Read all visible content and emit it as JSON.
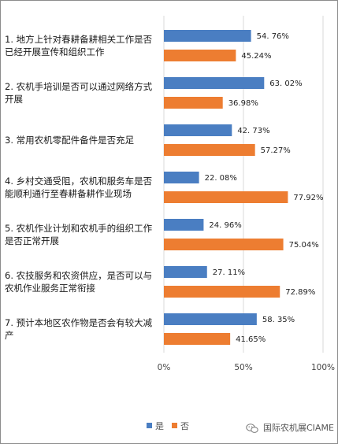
{
  "chart_data": {
    "type": "bar",
    "orientation": "horizontal",
    "categories": [
      [
        "1. 地方上针对春耕备耕相关工作是否",
        "已经开展宣传和组织工作"
      ],
      [
        "2. 农机手培训是否可以通过网络方式",
        "开展"
      ],
      [
        "3. 常用农机零配件备件是否充足"
      ],
      [
        "4. 乡村交通受阻，农机和服务车是否",
        "能顺利通行至春耕备耕作业现场"
      ],
      [
        "5. 农机作业计划和农机手的组织工作",
        "是否正常开展"
      ],
      [
        "6. 农技服务和农资供应，是否可以与",
        "农机作业服务正常衔接"
      ],
      [
        "7. 预计本地区农作物是否会有较大减",
        "产"
      ]
    ],
    "series": [
      {
        "name": "是",
        "color": "#4A7EC2",
        "values": [
          54.76,
          63.02,
          42.73,
          22.08,
          24.96,
          27.11,
          58.35
        ],
        "labels": [
          "54. 76%",
          "63. 02%",
          "42. 73%",
          "22. 08%",
          "24. 96%",
          "27. 11%",
          "58. 35%"
        ]
      },
      {
        "name": "否",
        "color": "#ED7D31",
        "values": [
          45.24,
          36.98,
          57.27,
          77.92,
          75.04,
          72.89,
          41.65
        ],
        "labels": [
          "45.24%",
          "36.98%",
          "57.27%",
          "77.92%",
          "75.04%",
          "72.89%",
          "41.65%"
        ]
      }
    ],
    "xlim": [
      0,
      100
    ],
    "xticks": [
      0,
      50,
      100
    ],
    "xtick_labels": [
      "0%",
      "50%",
      "100%"
    ],
    "grid": "vertical",
    "gridline_color": "#D9D9D9",
    "legend_position": "bottom"
  },
  "watermark": {
    "icon": "wechat-icon",
    "text": "国际农机展CIAME"
  }
}
